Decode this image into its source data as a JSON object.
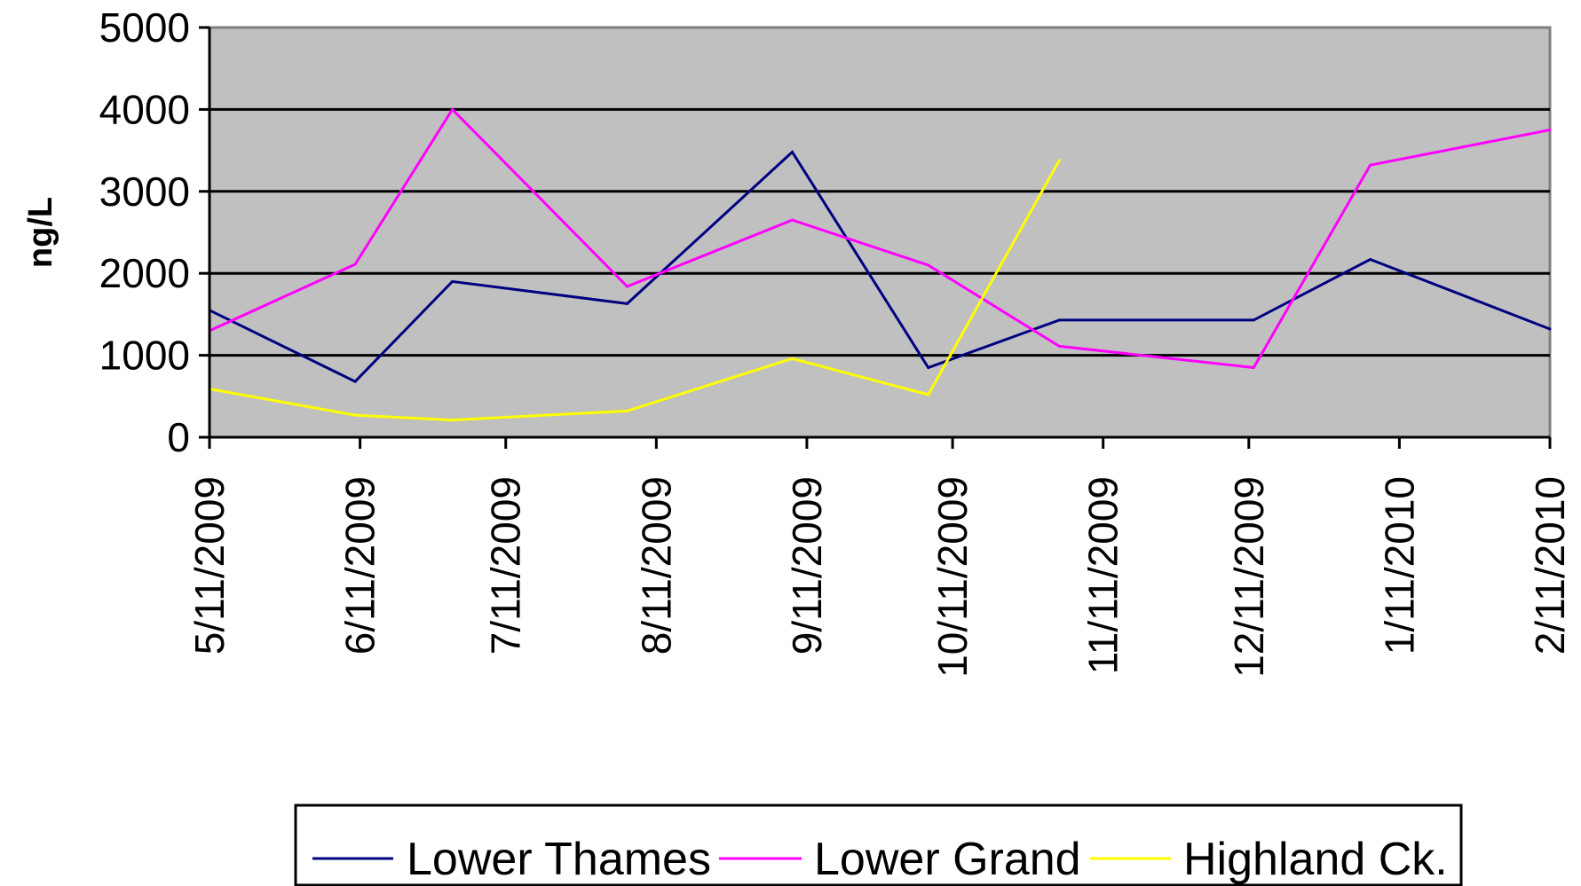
{
  "chart_data": {
    "type": "line",
    "ylabel": "ng/L",
    "xlabel": "",
    "ylim": [
      0,
      5000
    ],
    "y_ticks": [
      "0",
      "1000",
      "2000",
      "3000",
      "4000",
      "5000"
    ],
    "x_tick_labels": [
      "5/11/2009",
      "6/11/2009",
      "7/11/2009",
      "8/11/2009",
      "9/11/2009",
      "10/11/2009",
      "11/11/2009",
      "12/11/2009",
      "1/11/2010",
      "2/11/2010"
    ],
    "x_ticks": [
      "2009-05-11",
      "2009-06-11",
      "2009-07-11",
      "2009-08-11",
      "2009-09-11",
      "2009-10-11",
      "2009-11-11",
      "2009-12-11",
      "2010-01-11",
      "2010-02-11"
    ],
    "xlim": [
      "2009-05-11",
      "2010-02-11"
    ],
    "grid": "horizontal",
    "legend_position": "bottom",
    "plot_background": "#c0c0c0",
    "series": [
      {
        "name": "Lower Thames",
        "color": "#000080",
        "points": [
          {
            "x": "2009-05-11",
            "y": 1550
          },
          {
            "x": "2009-06-10",
            "y": 680
          },
          {
            "x": "2009-06-30",
            "y": 1900
          },
          {
            "x": "2009-08-05",
            "y": 1630
          },
          {
            "x": "2009-09-08",
            "y": 3480
          },
          {
            "x": "2009-10-06",
            "y": 850
          },
          {
            "x": "2009-11-02",
            "y": 1430
          },
          {
            "x": "2009-12-12",
            "y": 1430
          },
          {
            "x": "2010-01-05",
            "y": 2170
          },
          {
            "x": "2010-02-11",
            "y": 1320
          }
        ]
      },
      {
        "name": "Lower Grand",
        "color": "#ff00ff",
        "points": [
          {
            "x": "2009-05-11",
            "y": 1300
          },
          {
            "x": "2009-06-10",
            "y": 2110
          },
          {
            "x": "2009-06-30",
            "y": 4000
          },
          {
            "x": "2009-08-05",
            "y": 1840
          },
          {
            "x": "2009-09-08",
            "y": 2650
          },
          {
            "x": "2009-10-06",
            "y": 2100
          },
          {
            "x": "2009-11-02",
            "y": 1110
          },
          {
            "x": "2009-12-12",
            "y": 850
          },
          {
            "x": "2010-01-05",
            "y": 3320
          },
          {
            "x": "2010-02-11",
            "y": 3750
          }
        ]
      },
      {
        "name": "Highland Ck.",
        "color": "#ffff00",
        "points": [
          {
            "x": "2009-05-11",
            "y": 590
          },
          {
            "x": "2009-06-10",
            "y": 270
          },
          {
            "x": "2009-06-30",
            "y": 210
          },
          {
            "x": "2009-08-05",
            "y": 320
          },
          {
            "x": "2009-09-08",
            "y": 960
          },
          {
            "x": "2009-10-06",
            "y": 520
          },
          {
            "x": "2009-11-02",
            "y": 3380
          }
        ]
      }
    ]
  }
}
